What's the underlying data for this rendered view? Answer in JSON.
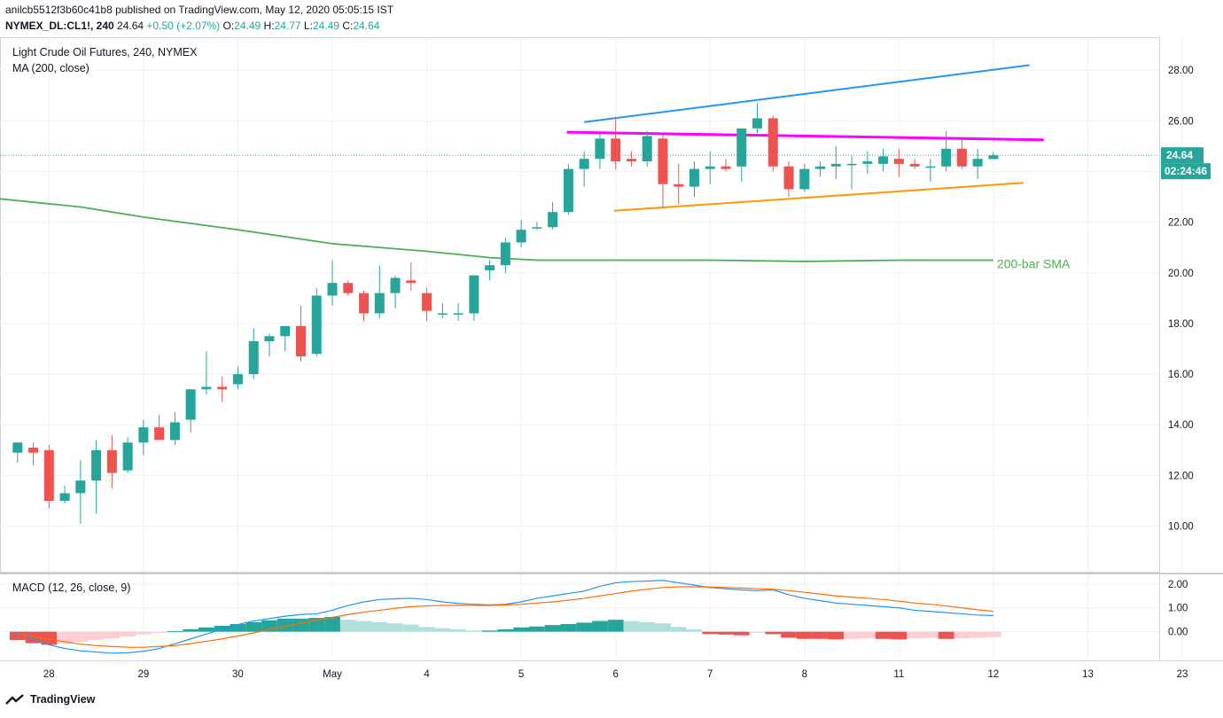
{
  "header": {
    "line1": "anilcb5512f3b60c41b8 published on TradingView.com, May 12, 2020 05:05:15 IST",
    "symbol": "NYMEX_DL:CL1!, 240",
    "last": "24.64",
    "change": "+0.50 (+2.07%)",
    "o_label": "O:",
    "o_val": "24.49",
    "h_label": "H:",
    "h_val": "24.77",
    "l_label": "L:",
    "l_val": "24.49",
    "c_label": "C:",
    "c_val": "24.64"
  },
  "main_title": "Light Crude Oil Futures, 240, NYMEX",
  "ma_label": "MA (200, close)",
  "macd_label": "MACD (12, 26, close, 9)",
  "sma_annotation": "200-bar SMA",
  "price_badge": "24.64",
  "time_badge": "02:24:46",
  "footer": "TradingView",
  "colors": {
    "up": "#26a69a",
    "down": "#ef5350",
    "sma": "#4caf50",
    "resistance_top": "#2196f3",
    "resistance_mid": "#ff00ff",
    "support": "#ff9800",
    "macd": "#2196f3",
    "signal": "#ff6d00"
  },
  "chart_data": [
    {
      "type": "candlestick",
      "title": "Light Crude Oil Futures, 240, NYMEX",
      "y_ticks": [
        "10.00",
        "12.00",
        "14.00",
        "16.00",
        "18.00",
        "20.00",
        "22.00",
        "24.00",
        "26.00",
        "28.00"
      ],
      "ylim": [
        8.2,
        29.3
      ],
      "x_ticks": [
        "28",
        "29",
        "30",
        "May",
        "4",
        "5",
        "6",
        "7",
        "8",
        "11",
        "12",
        "13",
        "23"
      ],
      "x_tick_index": [
        2,
        8,
        14,
        20,
        26,
        32,
        38,
        44,
        50,
        56,
        62,
        68,
        74
      ],
      "candles": [
        {
          "o": 12.9,
          "h": 13.3,
          "l": 12.5,
          "c": 13.3
        },
        {
          "o": 13.1,
          "h": 13.3,
          "l": 12.4,
          "c": 12.9
        },
        {
          "o": 13.0,
          "h": 13.2,
          "l": 10.7,
          "c": 11.0
        },
        {
          "o": 11.0,
          "h": 11.6,
          "l": 10.9,
          "c": 11.3
        },
        {
          "o": 11.3,
          "h": 12.6,
          "l": 10.1,
          "c": 11.8
        },
        {
          "o": 11.8,
          "h": 13.4,
          "l": 10.5,
          "c": 13.0
        },
        {
          "o": 13.0,
          "h": 13.6,
          "l": 11.5,
          "c": 12.1
        },
        {
          "o": 12.2,
          "h": 13.5,
          "l": 12.1,
          "c": 13.3
        },
        {
          "o": 13.3,
          "h": 14.2,
          "l": 12.8,
          "c": 13.9
        },
        {
          "o": 13.9,
          "h": 14.4,
          "l": 13.4,
          "c": 13.4
        },
        {
          "o": 13.4,
          "h": 14.5,
          "l": 13.2,
          "c": 14.1
        },
        {
          "o": 14.2,
          "h": 15.4,
          "l": 13.7,
          "c": 15.4
        },
        {
          "o": 15.4,
          "h": 16.9,
          "l": 15.2,
          "c": 15.5
        },
        {
          "o": 15.5,
          "h": 15.9,
          "l": 14.9,
          "c": 15.4
        },
        {
          "o": 15.6,
          "h": 16.3,
          "l": 15.4,
          "c": 16.0
        },
        {
          "o": 16.0,
          "h": 17.8,
          "l": 15.8,
          "c": 17.3
        },
        {
          "o": 17.3,
          "h": 17.6,
          "l": 16.7,
          "c": 17.5
        },
        {
          "o": 17.5,
          "h": 17.9,
          "l": 16.9,
          "c": 17.9
        },
        {
          "o": 17.9,
          "h": 18.7,
          "l": 16.5,
          "c": 16.7
        },
        {
          "o": 16.8,
          "h": 19.4,
          "l": 16.7,
          "c": 19.1
        },
        {
          "o": 19.1,
          "h": 20.5,
          "l": 18.7,
          "c": 19.6
        },
        {
          "o": 19.6,
          "h": 19.7,
          "l": 19.1,
          "c": 19.2
        },
        {
          "o": 19.2,
          "h": 19.3,
          "l": 18.1,
          "c": 18.4
        },
        {
          "o": 18.4,
          "h": 20.3,
          "l": 18.2,
          "c": 19.2
        },
        {
          "o": 19.2,
          "h": 19.9,
          "l": 18.6,
          "c": 19.8
        },
        {
          "o": 19.7,
          "h": 20.4,
          "l": 19.3,
          "c": 19.6
        },
        {
          "o": 19.2,
          "h": 19.4,
          "l": 18.1,
          "c": 18.5
        },
        {
          "o": 18.4,
          "h": 18.8,
          "l": 18.2,
          "c": 18.4
        },
        {
          "o": 18.4,
          "h": 18.8,
          "l": 18.1,
          "c": 18.4
        },
        {
          "o": 18.4,
          "h": 19.8,
          "l": 18.1,
          "c": 19.9
        },
        {
          "o": 20.1,
          "h": 20.5,
          "l": 19.7,
          "c": 20.3
        },
        {
          "o": 20.3,
          "h": 21.4,
          "l": 20.0,
          "c": 21.2
        },
        {
          "o": 21.2,
          "h": 22.1,
          "l": 21.0,
          "c": 21.7
        },
        {
          "o": 21.8,
          "h": 22.0,
          "l": 21.7,
          "c": 21.8
        },
        {
          "o": 21.8,
          "h": 22.8,
          "l": 21.7,
          "c": 22.4
        },
        {
          "o": 22.4,
          "h": 24.3,
          "l": 22.3,
          "c": 24.1
        },
        {
          "o": 24.1,
          "h": 24.8,
          "l": 23.4,
          "c": 24.5
        },
        {
          "o": 24.5,
          "h": 25.5,
          "l": 24.1,
          "c": 25.3
        },
        {
          "o": 25.3,
          "h": 26.1,
          "l": 24.1,
          "c": 24.4
        },
        {
          "o": 24.5,
          "h": 24.8,
          "l": 24.2,
          "c": 24.4
        },
        {
          "o": 24.4,
          "h": 25.6,
          "l": 24.2,
          "c": 25.4
        },
        {
          "o": 25.3,
          "h": 25.5,
          "l": 22.6,
          "c": 23.5
        },
        {
          "o": 23.5,
          "h": 24.3,
          "l": 22.7,
          "c": 23.4
        },
        {
          "o": 23.4,
          "h": 24.4,
          "l": 23.0,
          "c": 24.1
        },
        {
          "o": 24.1,
          "h": 24.8,
          "l": 23.5,
          "c": 24.2
        },
        {
          "o": 24.2,
          "h": 24.5,
          "l": 24.0,
          "c": 24.1
        },
        {
          "o": 24.2,
          "h": 25.5,
          "l": 23.6,
          "c": 25.7
        },
        {
          "o": 25.7,
          "h": 26.7,
          "l": 25.5,
          "c": 26.1
        },
        {
          "o": 26.1,
          "h": 26.2,
          "l": 24.0,
          "c": 24.2
        },
        {
          "o": 24.2,
          "h": 24.4,
          "l": 23.0,
          "c": 23.3
        },
        {
          "o": 23.3,
          "h": 24.3,
          "l": 23.2,
          "c": 24.1
        },
        {
          "o": 24.1,
          "h": 24.4,
          "l": 23.8,
          "c": 24.2
        },
        {
          "o": 24.2,
          "h": 25.0,
          "l": 23.7,
          "c": 24.3
        },
        {
          "o": 24.3,
          "h": 24.6,
          "l": 23.3,
          "c": 24.3
        },
        {
          "o": 24.3,
          "h": 24.8,
          "l": 23.9,
          "c": 24.4
        },
        {
          "o": 24.3,
          "h": 24.9,
          "l": 24.0,
          "c": 24.6
        },
        {
          "o": 24.5,
          "h": 24.9,
          "l": 23.8,
          "c": 24.3
        },
        {
          "o": 24.3,
          "h": 24.5,
          "l": 24.1,
          "c": 24.2
        },
        {
          "o": 24.2,
          "h": 24.5,
          "l": 23.6,
          "c": 24.2
        },
        {
          "o": 24.2,
          "h": 25.6,
          "l": 24.0,
          "c": 24.9
        },
        {
          "o": 24.9,
          "h": 25.3,
          "l": 24.1,
          "c": 24.2
        },
        {
          "o": 24.2,
          "h": 24.9,
          "l": 23.7,
          "c": 24.5
        },
        {
          "o": 24.49,
          "h": 24.77,
          "l": 24.49,
          "c": 24.64
        }
      ],
      "sma_200": [
        {
          "x": -1.6,
          "y": 22.95
        },
        {
          "x": 4,
          "y": 22.6
        },
        {
          "x": 8,
          "y": 22.2
        },
        {
          "x": 14,
          "y": 21.7
        },
        {
          "x": 20,
          "y": 21.15
        },
        {
          "x": 26,
          "y": 20.85
        },
        {
          "x": 30,
          "y": 20.6
        },
        {
          "x": 33,
          "y": 20.5
        },
        {
          "x": 38,
          "y": 20.5
        },
        {
          "x": 44,
          "y": 20.5
        },
        {
          "x": 50,
          "y": 20.45
        },
        {
          "x": 56,
          "y": 20.5
        },
        {
          "x": 62,
          "y": 20.5
        }
      ],
      "trendlines": [
        {
          "name": "upper",
          "x": [
            36.0,
            64.3
          ],
          "y": [
            25.95,
            28.2
          ]
        },
        {
          "name": "resistance",
          "x": [
            34.9,
            65.2
          ],
          "y": [
            25.55,
            25.25
          ]
        },
        {
          "name": "support",
          "x": [
            37.9,
            63.9
          ],
          "y": [
            22.45,
            23.55
          ]
        }
      ],
      "last_price": 24.64
    },
    {
      "type": "bar",
      "title": "MACD (12, 26, close, 9)",
      "y_ticks": [
        "0.00",
        "1.00",
        "2.00"
      ],
      "ylim": [
        -1.2,
        2.4
      ],
      "histogram": [
        -0.35,
        -0.48,
        -0.55,
        -0.5,
        -0.42,
        -0.35,
        -0.28,
        -0.2,
        -0.12,
        -0.05,
        0.02,
        0.1,
        0.18,
        0.25,
        0.32,
        0.4,
        0.48,
        0.55,
        0.55,
        0.58,
        0.62,
        0.5,
        0.45,
        0.4,
        0.35,
        0.3,
        0.2,
        0.15,
        0.1,
        0.05,
        0.05,
        0.1,
        0.18,
        0.22,
        0.28,
        0.32,
        0.38,
        0.45,
        0.5,
        0.45,
        0.4,
        0.35,
        0.2,
        0.1,
        -0.1,
        -0.12,
        -0.15,
        -0.05,
        -0.1,
        -0.25,
        -0.3,
        -0.3,
        -0.32,
        -0.3,
        -0.28,
        -0.3,
        -0.32,
        -0.28,
        -0.26,
        -0.3,
        -0.28,
        -0.25,
        -0.22
      ],
      "macd_line": [
        -0.05,
        -0.3,
        -0.55,
        -0.7,
        -0.8,
        -0.85,
        -0.9,
        -0.88,
        -0.82,
        -0.7,
        -0.5,
        -0.3,
        -0.1,
        0.1,
        0.3,
        0.45,
        0.55,
        0.65,
        0.72,
        0.75,
        0.9,
        1.1,
        1.25,
        1.35,
        1.38,
        1.4,
        1.35,
        1.25,
        1.18,
        1.15,
        1.12,
        1.15,
        1.25,
        1.4,
        1.5,
        1.6,
        1.7,
        1.9,
        2.05,
        2.1,
        2.12,
        2.15,
        2.05,
        1.95,
        1.85,
        1.8,
        1.75,
        1.72,
        1.75,
        1.55,
        1.4,
        1.3,
        1.2,
        1.15,
        1.1,
        1.05,
        1.0,
        0.9,
        0.85,
        0.8,
        0.75,
        0.7,
        0.68
      ],
      "signal_line": [
        -0.1,
        -0.2,
        -0.32,
        -0.42,
        -0.52,
        -0.58,
        -0.62,
        -0.65,
        -0.65,
        -0.62,
        -0.58,
        -0.5,
        -0.4,
        -0.3,
        -0.18,
        -0.05,
        0.1,
        0.22,
        0.35,
        0.48,
        0.6,
        0.72,
        0.82,
        0.9,
        0.98,
        1.05,
        1.08,
        1.1,
        1.1,
        1.1,
        1.1,
        1.12,
        1.15,
        1.2,
        1.25,
        1.32,
        1.4,
        1.5,
        1.6,
        1.7,
        1.78,
        1.85,
        1.88,
        1.88,
        1.87,
        1.85,
        1.83,
        1.8,
        1.78,
        1.72,
        1.65,
        1.58,
        1.5,
        1.45,
        1.4,
        1.35,
        1.28,
        1.2,
        1.15,
        1.08,
        1.0,
        0.92,
        0.85
      ]
    }
  ]
}
